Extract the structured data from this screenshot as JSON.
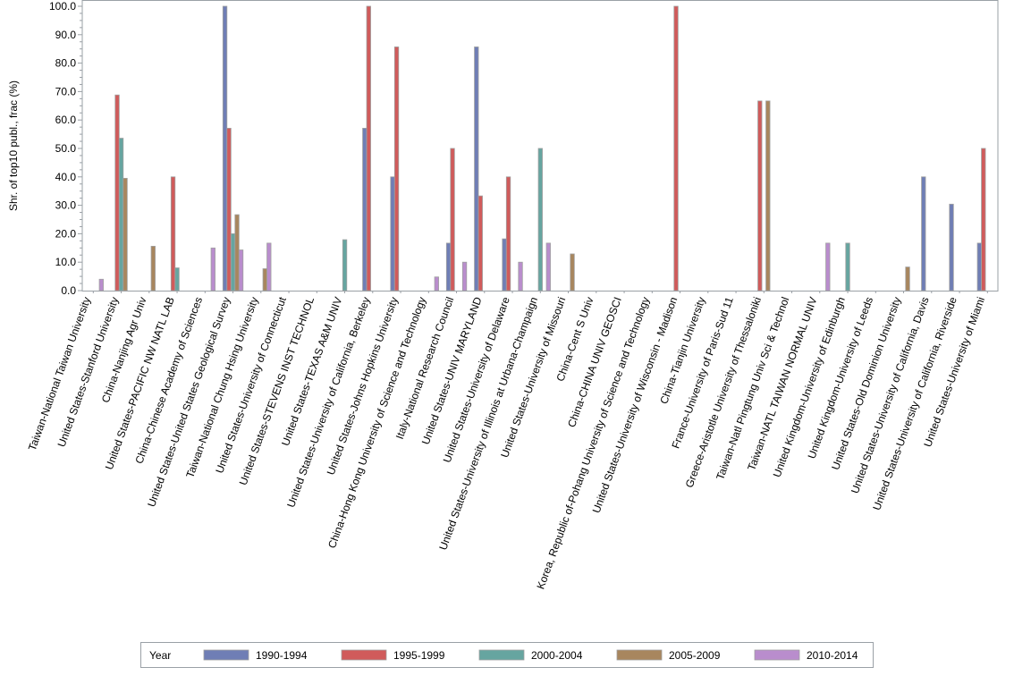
{
  "chart_data": {
    "type": "bar",
    "title": "",
    "xlabel": "",
    "ylabel": "Shr. of top10 publ., frac (%)",
    "ylim": [
      0,
      100
    ],
    "yticks": [
      "0.0",
      "10.0",
      "20.0",
      "30.0",
      "40.0",
      "50.0",
      "60.0",
      "70.0",
      "80.0",
      "90.0",
      "100.0"
    ],
    "grid": false,
    "legend_position": "bottom",
    "legend_title": "Year",
    "categories": [
      "Taiwan-National Taiwan University",
      "United States-Stanford University",
      "China-Nanjing Agr Univ",
      "United States-PACIFIC NW NATL LAB",
      "China-Chinese Academy of Sciences",
      "United States-United States Geological Survey",
      "Taiwan-National Chung Hsing University",
      "United States-University of Connecticut",
      "United States-STEVENS INST TECHNOL",
      "United States-TEXAS A&M UNIV",
      "United States-University of California, Berkeley",
      "United States-Johns Hopkins University",
      "China-Hong Kong University of Science and Technology",
      "Italy-National Research Council",
      "United States-UNIV MARYLAND",
      "United States-University of Delaware",
      "United States-University of Illinois at Urbana-Champaign",
      "United States-University of Missouri",
      "China-Cent S Univ",
      "China-CHINA UNIV GEOSCI",
      "Korea, Republic of-Pohang University of Science and Technology",
      "United States-University of Wisconsin - Madison",
      "China-Tianjin University",
      "France-University of Paris-Sud 11",
      "Greece-Aristotle University of Thessaloniki",
      "Taiwan-Natl Pingtung Univ Sci & Technol",
      "Taiwan-NATL TAIWAN NORMAL UNIV",
      "United Kingdom-University of Edinburgh",
      "United Kingdom-University of Leeds",
      "United States-Old Dominion University",
      "United States-University of California, Davis",
      "United States-University of California, Riverside",
      "United States-University of Miami"
    ],
    "series": [
      {
        "name": "1990-1994",
        "color": "#6f7eb5",
        "values": [
          0,
          0,
          0,
          0,
          0,
          100,
          0,
          0,
          0,
          0,
          57.1,
          40,
          0,
          16.7,
          85.7,
          18.2,
          0,
          0,
          0,
          0,
          0,
          0,
          0,
          0,
          0,
          0,
          0,
          0,
          0,
          0,
          40,
          30.4,
          16.7
        ]
      },
      {
        "name": "1995-1999",
        "color": "#d05b5b",
        "values": [
          0,
          68.8,
          0,
          40,
          0,
          57.1,
          0,
          0,
          0,
          0,
          100,
          85.7,
          0,
          50,
          33.3,
          40,
          0,
          0,
          0,
          0,
          0,
          100,
          0,
          0,
          66.7,
          0,
          0,
          0,
          0,
          0,
          0,
          0,
          50
        ]
      },
      {
        "name": "2000-2004",
        "color": "#66a5a0",
        "values": [
          0,
          53.6,
          0,
          8,
          0,
          20,
          0,
          0,
          0,
          17.9,
          0,
          0,
          0,
          0,
          0,
          0,
          50,
          0,
          0,
          0,
          0,
          0,
          0,
          0,
          0,
          0,
          0,
          16.7,
          0,
          0,
          0,
          0,
          0
        ]
      },
      {
        "name": "2005-2009",
        "color": "#a8865e",
        "values": [
          0,
          39.5,
          15.6,
          0,
          0,
          26.7,
          7.7,
          0,
          0,
          0,
          0,
          0,
          0,
          0,
          0,
          0,
          0,
          12.9,
          0,
          0,
          0,
          0,
          0,
          0,
          66.7,
          0,
          0,
          0,
          0,
          8.3,
          0,
          0,
          0
        ]
      },
      {
        "name": "2010-2014",
        "color": "#b98dcd",
        "values": [
          4,
          0,
          0,
          0,
          15,
          14.3,
          16.7,
          0,
          0,
          0,
          0,
          0,
          4.8,
          10,
          0,
          10,
          16.7,
          0,
          0,
          0,
          0,
          0,
          0,
          0,
          0,
          0,
          16.7,
          0,
          0,
          0,
          0,
          0,
          0
        ]
      }
    ]
  }
}
